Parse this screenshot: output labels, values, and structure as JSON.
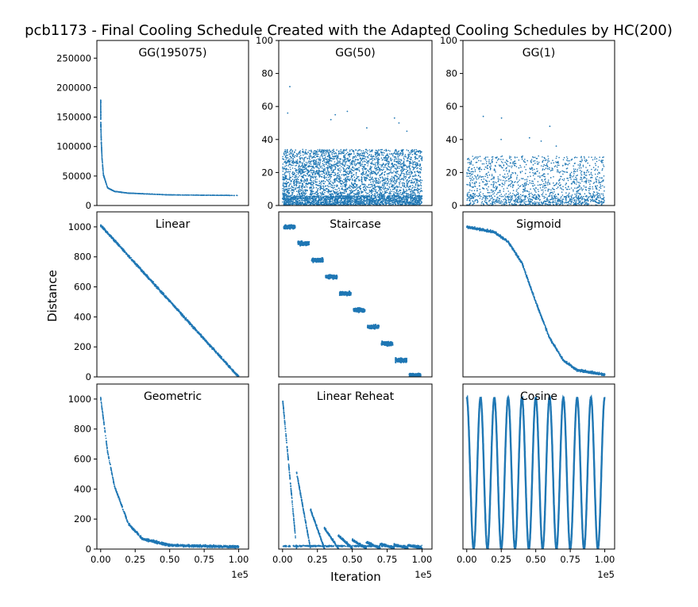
{
  "suptitle": "pcb1173 - Final Cooling Schedule Created with the Adapted Cooling Schedules by HC(200)",
  "ylabel": "Distance",
  "xlabel": "Iteration",
  "x_offset_label": "1e5",
  "colors": {
    "series": "#1f77b4"
  },
  "chart_data": [
    {
      "type": "scatter",
      "panel": "GG(195075)",
      "title": "GG(195075)",
      "xlim": [
        0,
        1.0
      ],
      "ylim": [
        0,
        280000
      ],
      "yticks": [
        0,
        50000,
        100000,
        150000,
        200000,
        250000
      ],
      "ytick_labels": [
        "0",
        "50000",
        "100000",
        "150000",
        "200000",
        "250000"
      ],
      "xticks_visible": false,
      "x_scale_note": "x in units of 1e5 iterations",
      "series": [
        {
          "description": "rapid decay",
          "points": [
            [
              0,
              177000
            ],
            [
              0.001,
              140000
            ],
            [
              0.003,
              120000
            ],
            [
              0.006,
              100000
            ],
            [
              0.01,
              80000
            ],
            [
              0.02,
              52000
            ],
            [
              0.05,
              30000
            ],
            [
              0.1,
              24000
            ],
            [
              0.2,
              21000
            ],
            [
              0.3,
              20000
            ],
            [
              0.5,
              18000
            ],
            [
              0.75,
              17500
            ],
            [
              1.0,
              17000
            ]
          ]
        }
      ]
    },
    {
      "type": "scatter",
      "panel": "GG(50)",
      "title": "GG(50)",
      "xlim": [
        0,
        1.0
      ],
      "ylim": [
        0,
        100
      ],
      "yticks": [
        0,
        20,
        40,
        60,
        80,
        100
      ],
      "ytick_labels": [
        "0",
        "20",
        "40",
        "60",
        "80",
        "100"
      ],
      "xticks_visible": false,
      "series": [
        {
          "description": "dense noise band",
          "band": [
            0,
            34
          ],
          "outliers": [
            72,
            57,
            55,
            53,
            56,
            52,
            50,
            47,
            45
          ]
        }
      ]
    },
    {
      "type": "scatter",
      "panel": "GG(1)",
      "title": "GG(1)",
      "xlim": [
        0,
        1.0
      ],
      "ylim": [
        0,
        100
      ],
      "yticks": [
        0,
        20,
        40,
        60,
        80,
        100
      ],
      "ytick_labels": [
        "0",
        "20",
        "40",
        "60",
        "80",
        "100"
      ],
      "xticks_visible": false,
      "series": [
        {
          "description": "sparse noise band",
          "band": [
            0,
            30
          ],
          "outliers": [
            54,
            53,
            48,
            41,
            40,
            39,
            36
          ]
        }
      ]
    },
    {
      "type": "scatter",
      "panel": "Linear",
      "title": "Linear",
      "xlim": [
        0,
        1.0
      ],
      "ylim": [
        0,
        1100
      ],
      "yticks": [
        0,
        200,
        400,
        600,
        800,
        1000
      ],
      "ytick_labels": [
        "0",
        "200",
        "400",
        "600",
        "800",
        "1000"
      ],
      "xticks_visible": false,
      "series": [
        {
          "description": "linear decline",
          "points": [
            [
              0,
              1010
            ],
            [
              0.5,
              505
            ],
            [
              1.0,
              0
            ]
          ]
        }
      ]
    },
    {
      "type": "scatter",
      "panel": "Staircase",
      "title": "Staircase",
      "xlim": [
        0,
        1.0
      ],
      "ylim": [
        0,
        1100
      ],
      "yticks_visible": false,
      "xticks_visible": false,
      "series": [
        {
          "description": "ten descending steps",
          "steps": [
            1000,
            889,
            778,
            667,
            556,
            445,
            333,
            222,
            111,
            10
          ]
        }
      ]
    },
    {
      "type": "scatter",
      "panel": "Sigmoid",
      "title": "Sigmoid",
      "xlim": [
        0,
        1.0
      ],
      "ylim": [
        0,
        1100
      ],
      "yticks_visible": false,
      "xticks_visible": false,
      "series": [
        {
          "description": "sigmoid decline",
          "points": [
            [
              0,
              1000
            ],
            [
              0.2,
              965
            ],
            [
              0.3,
              900
            ],
            [
              0.4,
              760
            ],
            [
              0.5,
              500
            ],
            [
              0.6,
              260
            ],
            [
              0.7,
              110
            ],
            [
              0.8,
              45
            ],
            [
              1.0,
              15
            ]
          ]
        }
      ]
    },
    {
      "type": "scatter",
      "panel": "Geometric",
      "title": "Geometric",
      "xlim": [
        0,
        1.0
      ],
      "ylim": [
        0,
        1100
      ],
      "yticks": [
        0,
        200,
        400,
        600,
        800,
        1000
      ],
      "ytick_labels": [
        "0",
        "200",
        "400",
        "600",
        "800",
        "1000"
      ],
      "xticks": [
        0,
        0.25,
        0.5,
        0.75,
        1.0
      ],
      "xtick_labels": [
        "0.00",
        "0.25",
        "0.50",
        "0.75",
        "1.00"
      ],
      "series": [
        {
          "description": "exponential decay",
          "points": [
            [
              0,
              1010
            ],
            [
              0.05,
              650
            ],
            [
              0.1,
              420
            ],
            [
              0.2,
              170
            ],
            [
              0.3,
              70
            ],
            [
              0.5,
              25
            ],
            [
              1.0,
              15
            ]
          ]
        }
      ]
    },
    {
      "type": "scatter",
      "panel": "Linear Reheat",
      "title": "Linear Reheat",
      "xlim": [
        0,
        1.0
      ],
      "ylim": [
        0,
        1100
      ],
      "yticks_visible": false,
      "xticks": [
        0,
        0.25,
        0.5,
        0.75,
        1.0
      ],
      "xtick_labels": [
        "0.00",
        "0.25",
        "0.50",
        "0.75",
        "1.00"
      ],
      "series": [
        {
          "description": "ten reheat cycles with decaying peaks",
          "cycle_peaks": [
            1000,
            510,
            260,
            135,
            85,
            55,
            40,
            30,
            25,
            20
          ]
        }
      ]
    },
    {
      "type": "line",
      "panel": "Cosine",
      "title": "Cosine",
      "xlim": [
        0,
        1.0
      ],
      "ylim": [
        0,
        1100
      ],
      "yticks_visible": false,
      "xticks": [
        0,
        0.25,
        0.5,
        0.75,
        1.0
      ],
      "xtick_labels": [
        "0.00",
        "0.25",
        "0.50",
        "0.75",
        "1.00"
      ],
      "series": [
        {
          "description": "oscillation between 0 and 1000",
          "cycles": 10,
          "amplitude": [
            0,
            1010
          ]
        }
      ]
    }
  ]
}
